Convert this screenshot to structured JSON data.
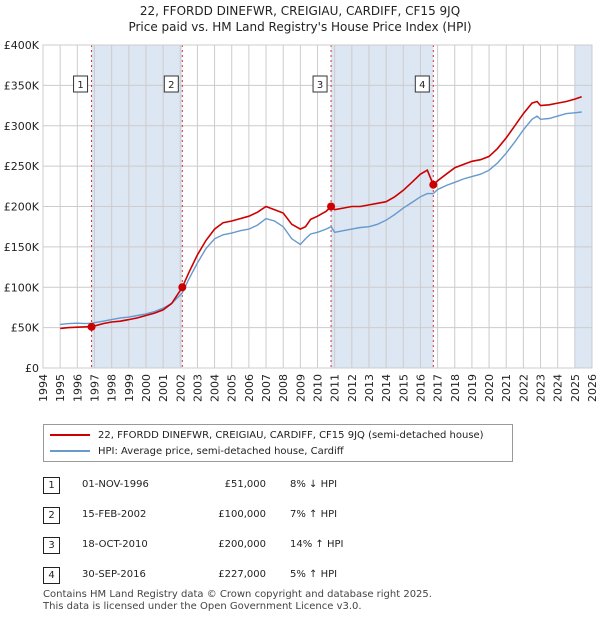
{
  "title_line1": "22, FFORDD DINEFWR, CREIGIAU, CARDIFF, CF15 9JQ",
  "title_line2": "Price paid vs. HM Land Registry's House Price Index (HPI)",
  "colors": {
    "property": "#cc0000",
    "hpi": "#6699cc",
    "shade": "#dde6f3",
    "grid": "#cccccc"
  },
  "chart_data": {
    "type": "line",
    "title": "Price paid vs. HM Land Registry's House Price Index (HPI)",
    "x_range": [
      1994,
      2026
    ],
    "ylim": [
      0,
      400000
    ],
    "y_ticks": [
      {
        "v": 0,
        "label": "£0"
      },
      {
        "v": 50000,
        "label": "£50K"
      },
      {
        "v": 100000,
        "label": "£100K"
      },
      {
        "v": 150000,
        "label": "£150K"
      },
      {
        "v": 200000,
        "label": "£200K"
      },
      {
        "v": 250000,
        "label": "£250K"
      },
      {
        "v": 300000,
        "label": "£300K"
      },
      {
        "v": 350000,
        "label": "£350K"
      },
      {
        "v": 400000,
        "label": "£400K"
      }
    ],
    "x_ticks": [
      "1994",
      "1995",
      "1996",
      "1997",
      "1998",
      "1999",
      "2000",
      "2001",
      "2002",
      "2003",
      "2004",
      "2005",
      "2006",
      "2007",
      "2008",
      "2009",
      "2010",
      "2011",
      "2012",
      "2013",
      "2014",
      "2015",
      "2016",
      "2017",
      "2018",
      "2019",
      "2020",
      "2021",
      "2022",
      "2023",
      "2024",
      "2025",
      "2026"
    ],
    "shaded_regions": [
      [
        1996.83,
        2002.12
      ],
      [
        2010.79,
        2016.75
      ],
      [
        2025.0,
        2026.0
      ]
    ],
    "series": [
      {
        "name": "22, FFORDD DINEFWR, CREIGIAU, CARDIFF, CF15 9JQ (semi-detached house)",
        "x": [
          1995.0,
          1995.5,
          1996.0,
          1996.5,
          1996.83,
          1997.5,
          1998.0,
          1998.5,
          1999.0,
          1999.5,
          2000.0,
          2000.5,
          2001.0,
          2001.5,
          2002.12,
          2002.5,
          2003.0,
          2003.5,
          2004.0,
          2004.5,
          2005.0,
          2005.5,
          2006.0,
          2006.5,
          2007.0,
          2007.5,
          2008.0,
          2008.5,
          2009.0,
          2009.3,
          2009.6,
          2010.0,
          2010.5,
          2010.79,
          2011.0,
          2011.5,
          2012.0,
          2012.5,
          2013.0,
          2013.5,
          2014.0,
          2014.5,
          2015.0,
          2015.5,
          2016.0,
          2016.4,
          2016.75,
          2017.0,
          2017.5,
          2018.0,
          2018.5,
          2019.0,
          2019.5,
          2020.0,
          2020.5,
          2021.0,
          2021.5,
          2022.0,
          2022.5,
          2022.8,
          2023.0,
          2023.5,
          2024.0,
          2024.5,
          2025.0,
          2025.4
        ],
        "y": [
          49000,
          50000,
          50500,
          51000,
          51000,
          55000,
          57000,
          58000,
          60000,
          62000,
          65000,
          68000,
          72000,
          80000,
          100000,
          118000,
          140000,
          158000,
          172000,
          180000,
          182000,
          185000,
          188000,
          193000,
          200000,
          196000,
          192000,
          178000,
          172000,
          175000,
          184000,
          188000,
          194000,
          200000,
          196000,
          198000,
          200000,
          200000,
          202000,
          204000,
          206000,
          212000,
          220000,
          230000,
          240000,
          245000,
          227000,
          232000,
          240000,
          248000,
          252000,
          256000,
          258000,
          262000,
          272000,
          285000,
          300000,
          315000,
          328000,
          330000,
          325000,
          326000,
          328000,
          330000,
          333000,
          336000
        ]
      },
      {
        "name": "HPI: Average price, semi-detached house, Cardiff",
        "x": [
          1995.0,
          1995.5,
          1996.0,
          1996.5,
          1996.83,
          1997.5,
          1998.0,
          1998.5,
          1999.0,
          1999.5,
          2000.0,
          2000.5,
          2001.0,
          2001.5,
          2002.12,
          2002.5,
          2003.0,
          2003.5,
          2004.0,
          2004.5,
          2005.0,
          2005.5,
          2006.0,
          2006.5,
          2007.0,
          2007.5,
          2008.0,
          2008.5,
          2009.0,
          2009.3,
          2009.6,
          2010.0,
          2010.5,
          2010.79,
          2011.0,
          2011.5,
          2012.0,
          2012.5,
          2013.0,
          2013.5,
          2014.0,
          2014.5,
          2015.0,
          2015.5,
          2016.0,
          2016.4,
          2016.75,
          2017.0,
          2017.5,
          2018.0,
          2018.5,
          2019.0,
          2019.5,
          2020.0,
          2020.5,
          2021.0,
          2021.5,
          2022.0,
          2022.5,
          2022.8,
          2023.0,
          2023.5,
          2024.0,
          2024.5,
          2025.0,
          2025.4
        ],
        "y": [
          54000,
          55000,
          55500,
          55000,
          55500,
          58000,
          60000,
          62000,
          63000,
          65000,
          67000,
          70000,
          74000,
          80000,
          93000,
          110000,
          130000,
          148000,
          160000,
          165000,
          167000,
          170000,
          172000,
          177000,
          185000,
          182000,
          175000,
          160000,
          153000,
          160000,
          166000,
          168000,
          172000,
          175000,
          168000,
          170000,
          172000,
          174000,
          175000,
          178000,
          183000,
          190000,
          198000,
          205000,
          212000,
          216000,
          216000,
          221000,
          226000,
          230000,
          234000,
          237000,
          240000,
          245000,
          254000,
          266000,
          280000,
          295000,
          308000,
          312000,
          308000,
          309000,
          312000,
          315000,
          316000,
          317000
        ]
      }
    ],
    "sales": [
      {
        "num": "1",
        "x": 1996.83,
        "y": 51000
      },
      {
        "num": "2",
        "x": 2002.12,
        "y": 100000
      },
      {
        "num": "3",
        "x": 2010.79,
        "y": 200000
      },
      {
        "num": "4",
        "x": 2016.75,
        "y": 227000
      }
    ]
  },
  "legend": {
    "property": "22, FFORDD DINEFWR, CREIGIAU, CARDIFF, CF15 9JQ (semi-detached house)",
    "hpi": "HPI: Average price, semi-detached house, Cardiff"
  },
  "transactions": [
    {
      "num": "1",
      "date": "01-NOV-1996",
      "price": "£51,000",
      "hpi": "8% ↓ HPI"
    },
    {
      "num": "2",
      "date": "15-FEB-2002",
      "price": "£100,000",
      "hpi": "7% ↑ HPI"
    },
    {
      "num": "3",
      "date": "18-OCT-2010",
      "price": "£200,000",
      "hpi": "14% ↑ HPI"
    },
    {
      "num": "4",
      "date": "30-SEP-2016",
      "price": "£227,000",
      "hpi": "5% ↑ HPI"
    }
  ],
  "footer_line1": "Contains HM Land Registry data © Crown copyright and database right 2025.",
  "footer_line2": "This data is licensed under the Open Government Licence v3.0."
}
